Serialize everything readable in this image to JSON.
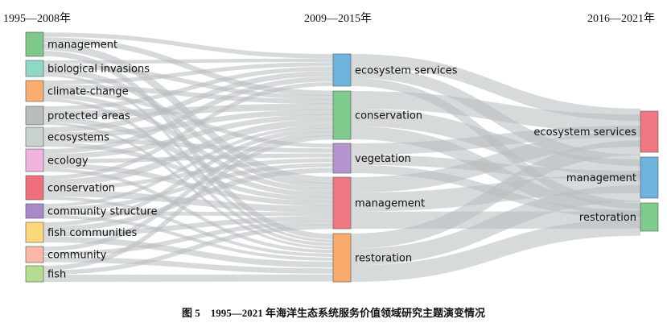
{
  "periods": [
    "1995—2008年",
    "2009—2015年",
    "2016—2021年"
  ],
  "caption": "图 5　1995—2021 年海洋生态系统服务价值领域研究主题演变情况",
  "link_color": "#b7bcbd",
  "columns": [
    {
      "nodes": [
        {
          "label": "management",
          "color": "#7fc88a"
        },
        {
          "label": "biological invasions",
          "color": "#8fd8c8"
        },
        {
          "label": "climate-change",
          "color": "#f9ad6e"
        },
        {
          "label": "protected areas",
          "color": "#b8bcbc"
        },
        {
          "label": "ecosystems",
          "color": "#c8d0d0"
        },
        {
          "label": "ecology",
          "color": "#f0b4dc"
        },
        {
          "label": "conservation",
          "color": "#ef6f7d"
        },
        {
          "label": "community structure",
          "color": "#a98ac8"
        },
        {
          "label": "fish communities",
          "color": "#fcd67a"
        },
        {
          "label": "community",
          "color": "#f9b7a6"
        },
        {
          "label": "fish",
          "color": "#b6dc92"
        }
      ]
    },
    {
      "nodes": [
        {
          "label": "ecosystem services",
          "color": "#6cb4dc"
        },
        {
          "label": "conservation",
          "color": "#80cc8c"
        },
        {
          "label": "vegetation",
          "color": "#b594d0"
        },
        {
          "label": "management",
          "color": "#ef7883"
        },
        {
          "label": "restoration",
          "color": "#f9aa6c"
        }
      ]
    },
    {
      "nodes": [
        {
          "label": "ecosystem services",
          "color": "#ef7883"
        },
        {
          "label": "management",
          "color": "#6cb4dc"
        },
        {
          "label": "restoration",
          "color": "#80cc8c"
        }
      ]
    }
  ]
}
